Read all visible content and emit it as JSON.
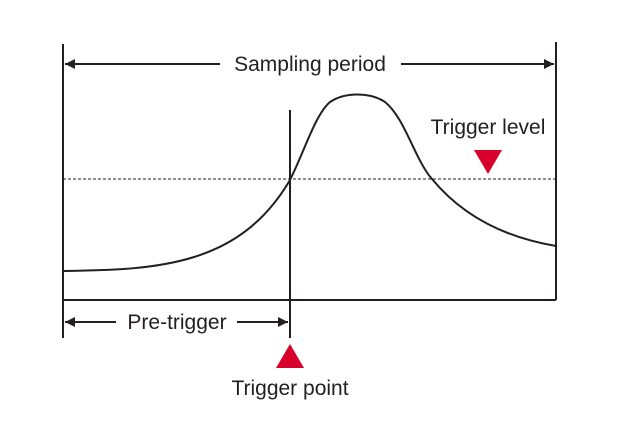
{
  "labels": {
    "sampling_period": "Sampling period",
    "trigger_level": "Trigger level",
    "pre_trigger": "Pre-trigger",
    "trigger_point": "Trigger point"
  },
  "colors": {
    "line": "#231f20",
    "marker": "#d7002a",
    "background": "#ffffff"
  }
}
